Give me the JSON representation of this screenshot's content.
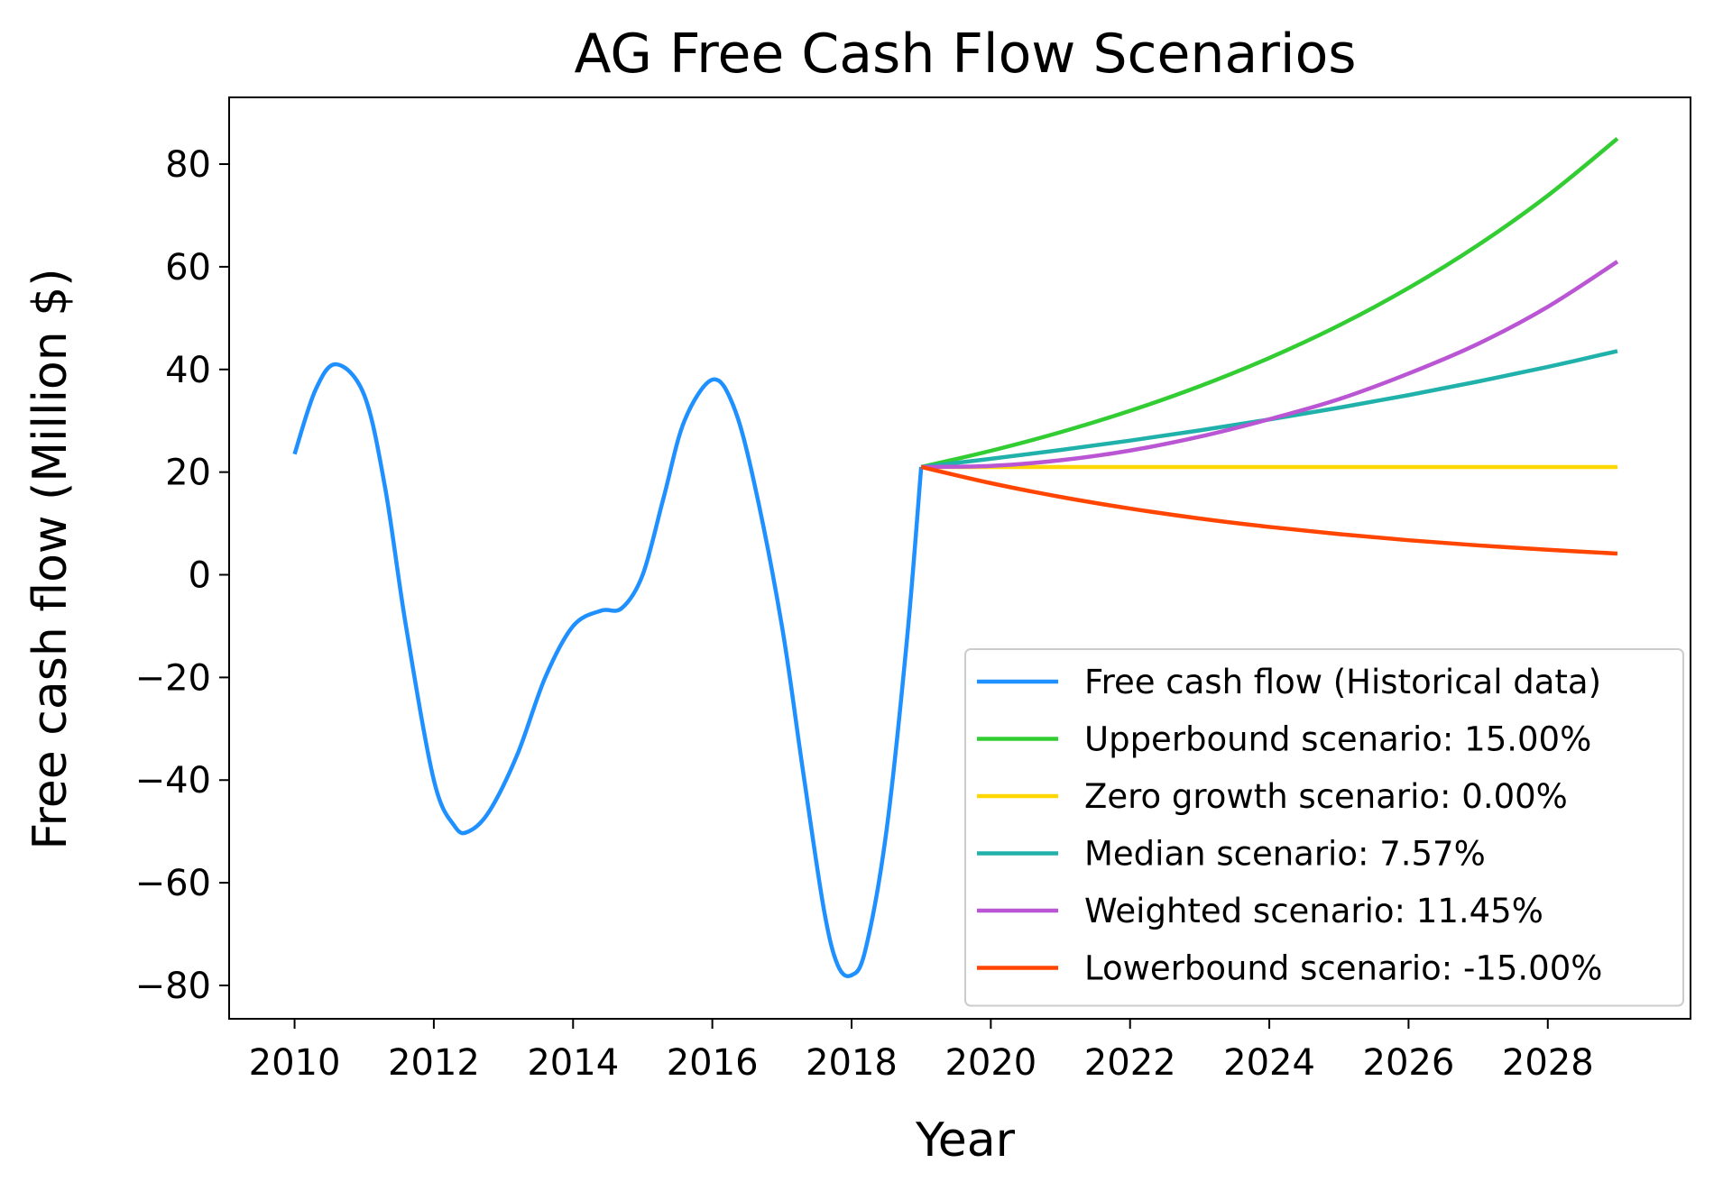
{
  "chart_data": {
    "type": "line",
    "title": "AG Free Cash Flow Scenarios",
    "xlabel": "Year",
    "ylabel": "Free cash flow (Million $)",
    "xlim": [
      2009.06,
      2030.05
    ],
    "ylim": [
      -86.5,
      93
    ],
    "x_ticks": [
      2010,
      2012,
      2014,
      2016,
      2018,
      2020,
      2022,
      2024,
      2026,
      2028
    ],
    "x_tick_labels": [
      "2010",
      "2012",
      "2014",
      "2016",
      "2018",
      "2020",
      "2022",
      "2024",
      "2026",
      "2028"
    ],
    "y_ticks": [
      -80,
      -60,
      -40,
      -20,
      0,
      20,
      40,
      60,
      80
    ],
    "y_tick_labels": [
      "−80",
      "−60",
      "−40",
      "−20",
      "0",
      "20",
      "40",
      "60",
      "80"
    ],
    "grid": false,
    "legend_position": "lower-right",
    "series": [
      {
        "name": "Free cash flow (Historical data)",
        "color": "#1E90FF",
        "x": [
          2010,
          2010.3,
          2010.6,
          2011,
          2011.3,
          2011.6,
          2012,
          2012.3,
          2012.5,
          2012.8,
          2013.2,
          2013.6,
          2014,
          2014.4,
          2014.7,
          2015,
          2015.3,
          2015.6,
          2016,
          2016.3,
          2016.6,
          2017,
          2017.3,
          2017.6,
          2017.8,
          2018,
          2018.2,
          2018.5,
          2018.8,
          2019
        ],
        "y": [
          23.5,
          36,
          41,
          35,
          17,
          -10,
          -40,
          -49,
          -50,
          -46,
          -35,
          -20,
          -10,
          -7,
          -6.5,
          0,
          15,
          30,
          38,
          33,
          18,
          -10,
          -38,
          -65,
          -76,
          -78,
          -73,
          -50,
          -12,
          21
        ]
      },
      {
        "name": "Upperbound scenario: 15.00%",
        "color": "#32CD32",
        "x": [
          2019,
          2020,
          2021,
          2022,
          2023,
          2024,
          2025,
          2026,
          2027,
          2028,
          2029
        ],
        "y": [
          21,
          24.15,
          27.77,
          31.94,
          36.73,
          42.24,
          48.57,
          55.86,
          64.24,
          73.87,
          84.96
        ]
      },
      {
        "name": "Zero growth scenario: 0.00%",
        "color": "#FFD700",
        "x": [
          2019,
          2020,
          2021,
          2022,
          2023,
          2024,
          2025,
          2026,
          2027,
          2028,
          2029
        ],
        "y": [
          21,
          21,
          21,
          21,
          21,
          21,
          21,
          21,
          21,
          21,
          21
        ]
      },
      {
        "name": "Median scenario: 7.57%",
        "color": "#20B2AA",
        "x": [
          2019,
          2020,
          2021,
          2022,
          2023,
          2024,
          2025,
          2026,
          2027,
          2028,
          2029
        ],
        "y": [
          21,
          22.59,
          24.3,
          26.14,
          28.12,
          30.25,
          32.54,
          35,
          37.65,
          40.5,
          43.57
        ]
      },
      {
        "name": "Weighted scenario: 11.45%",
        "color": "#BA55D3",
        "x": [
          2019,
          2020,
          2021,
          2022,
          2023,
          2024,
          2025,
          2026,
          2027,
          2028,
          2029
        ],
        "y": [
          21,
          21.2,
          22.3,
          24.2,
          26.9,
          30.3,
          34.2,
          39.2,
          45,
          52.2,
          61
        ]
      },
      {
        "name": "Lowerbound scenario: -15.00%",
        "color": "#FF4500",
        "x": [
          2019,
          2020,
          2021,
          2022,
          2023,
          2024,
          2025,
          2026,
          2027,
          2028,
          2029
        ],
        "y": [
          21,
          17.85,
          15.17,
          12.9,
          10.96,
          9.32,
          7.92,
          6.73,
          5.72,
          4.87,
          4.13
        ]
      }
    ]
  }
}
